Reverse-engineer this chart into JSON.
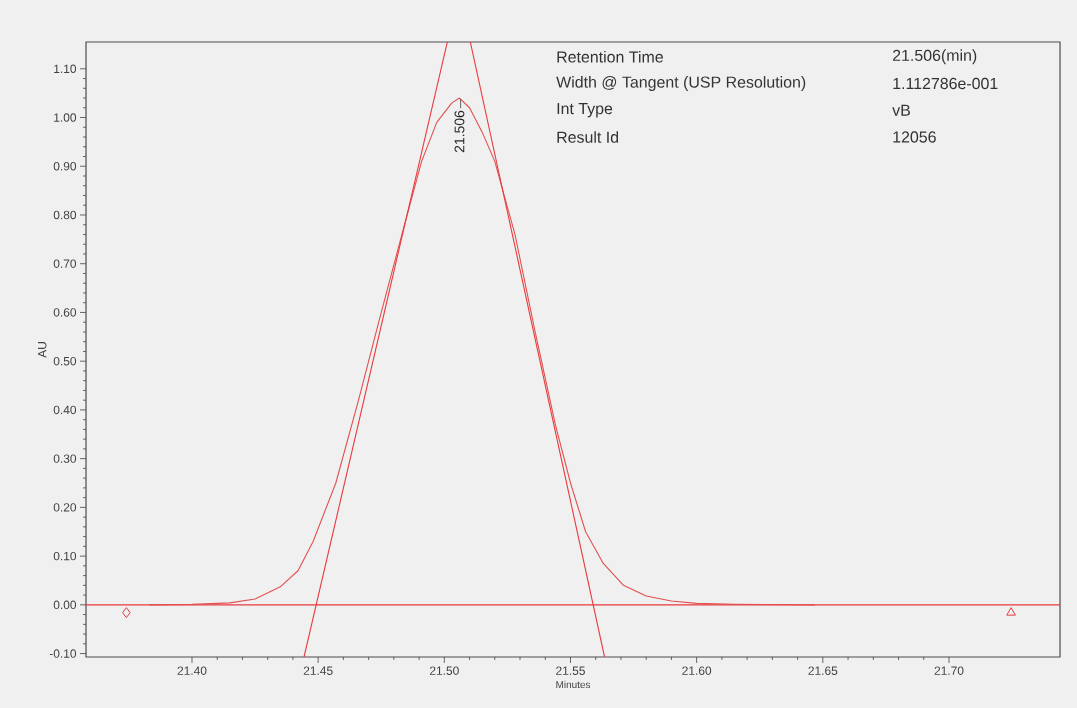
{
  "chart_data": {
    "type": "line",
    "xlabel": "Minutes",
    "ylabel": "AU",
    "xlim": [
      21.358,
      21.744
    ],
    "ylim": [
      -0.107,
      1.155
    ],
    "xticks": [
      {
        "value": 21.4,
        "label": "21.40"
      },
      {
        "value": 21.45,
        "label": "21.45"
      },
      {
        "value": 21.5,
        "label": "21.50"
      },
      {
        "value": 21.55,
        "label": "21.55"
      },
      {
        "value": 21.6,
        "label": "21.60"
      },
      {
        "value": 21.65,
        "label": "21.65"
      },
      {
        "value": 21.7,
        "label": "21.70"
      }
    ],
    "yticks": [
      {
        "value": -0.1,
        "label": "-0.10"
      },
      {
        "value": 0,
        "label": "0.00"
      },
      {
        "value": 0.1,
        "label": "0.10"
      },
      {
        "value": 0.2,
        "label": "0.20"
      },
      {
        "value": 0.3,
        "label": "0.30"
      },
      {
        "value": 0.4,
        "label": "0.40"
      },
      {
        "value": 0.5,
        "label": "0.50"
      },
      {
        "value": 0.6,
        "label": "0.60"
      },
      {
        "value": 0.7,
        "label": "0.70"
      },
      {
        "value": 0.8,
        "label": "0.80"
      },
      {
        "value": 0.9,
        "label": "0.90"
      },
      {
        "value": 1.0,
        "label": "1.00"
      },
      {
        "value": 1.1,
        "label": "1.10"
      }
    ],
    "grid": false,
    "marker": "none",
    "line_style": "solid",
    "ref_lines": [
      {
        "axis": "y",
        "value": 0,
        "color": "#e8383d"
      }
    ],
    "annotations": [
      {
        "text": "21.506",
        "x": 21.506,
        "y": 1.04
      },
      "Retention Time",
      "21.506(min)",
      "Width @ Tangent (USP Resolution)",
      "1.112786e-001",
      "Int Type",
      "vB",
      "Result Id",
      "12056"
    ],
    "series": [
      {
        "color": "#e05050",
        "x": [
          21.383,
          21.4,
          21.415,
          21.425,
          21.435,
          21.442,
          21.448,
          21.457,
          21.466,
          21.475,
          21.4837,
          21.491,
          21.497,
          21.503,
          21.506,
          21.51,
          21.515,
          21.52,
          21.528,
          21.536,
          21.544,
          21.55,
          21.556,
          21.563,
          21.571,
          21.58,
          21.59,
          21.6,
          21.615,
          21.647
        ],
        "values": [
          0,
          0.001,
          0.004,
          0.012,
          0.037,
          0.07,
          0.13,
          0.25,
          0.42,
          0.6,
          0.77,
          0.91,
          0.99,
          1.03,
          1.04,
          1.02,
          0.97,
          0.91,
          0.76,
          0.56,
          0.37,
          0.25,
          0.15,
          0.085,
          0.04,
          0.018,
          0.008,
          0.003,
          0.001,
          0
        ]
      },
      {
        "color": "#e8383d",
        "x": [
          21.4444,
          21.5012
        ],
        "values": [
          -0.107,
          1.155
        ]
      },
      {
        "color": "#e8383d",
        "x": [
          21.5635,
          21.5103
        ],
        "values": [
          -0.107,
          1.155
        ]
      },
      {
        "type": "scatter",
        "marker": "diamond",
        "color": "#e8383d",
        "x": [
          21.374
        ],
        "values": [
          -0.016
        ]
      },
      {
        "type": "scatter",
        "marker": "triangle",
        "color": "#e8383d",
        "x": [
          21.7246
        ],
        "values": [
          -0.016
        ]
      }
    ]
  }
}
